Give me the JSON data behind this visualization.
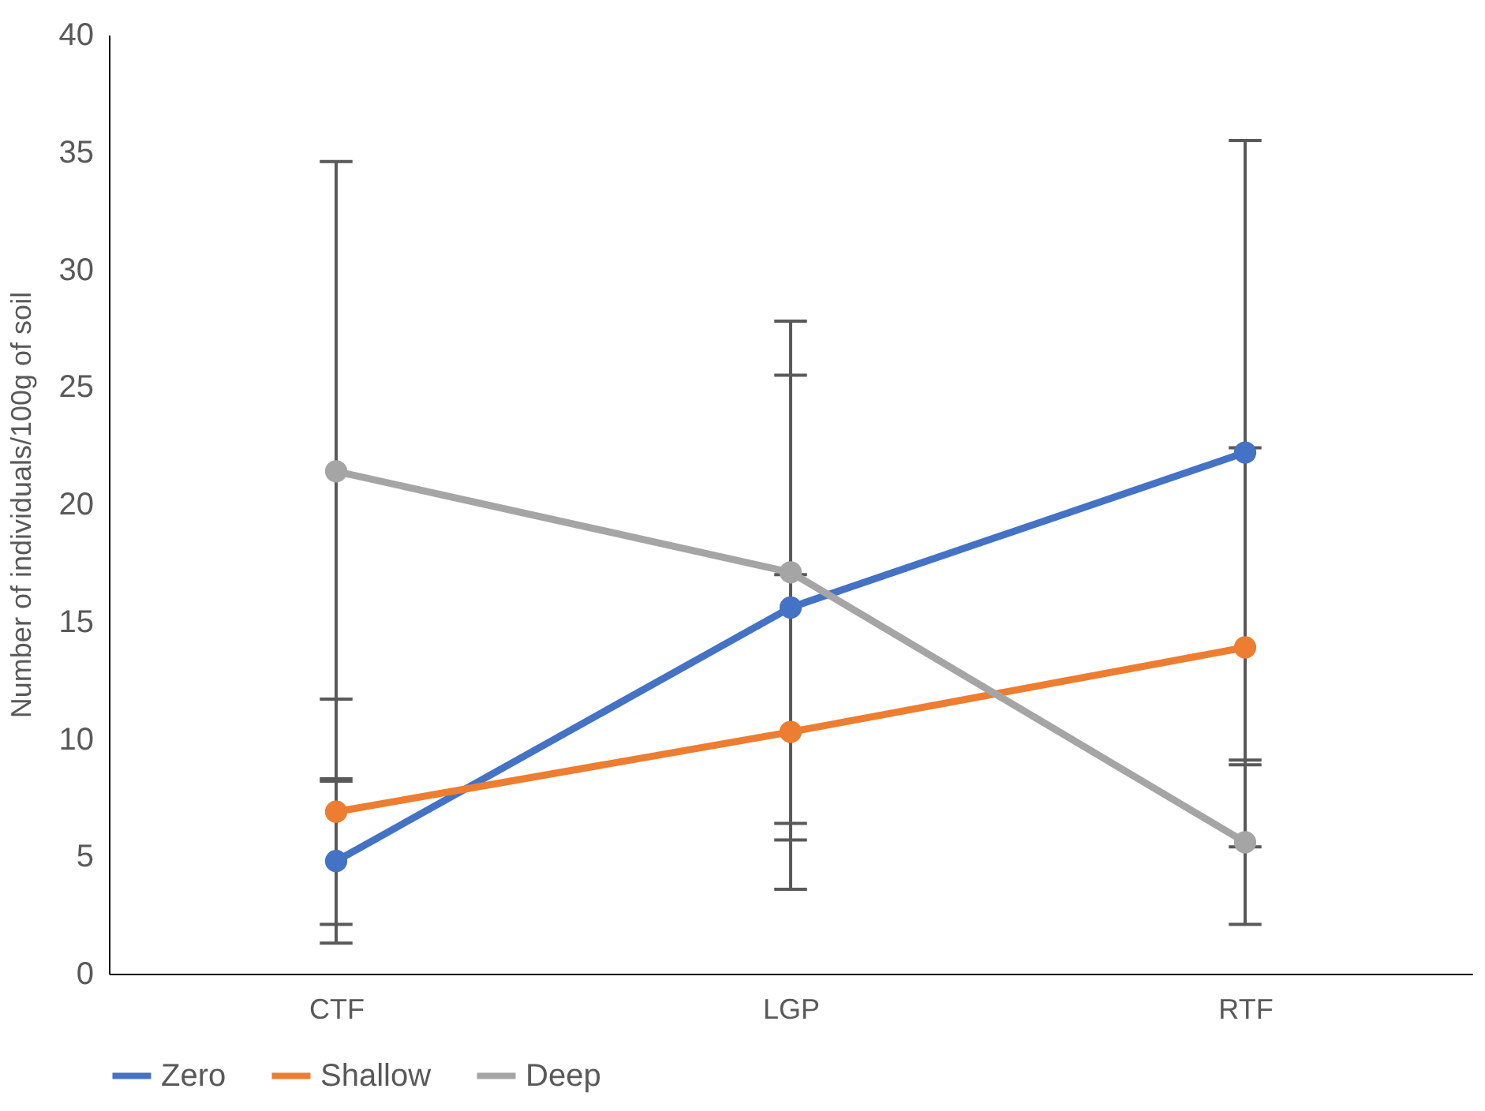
{
  "chart_data": {
    "type": "line",
    "ylabel": "Number of individuals/100g of soil",
    "categories": [
      "CTF",
      "LGP",
      "RTF"
    ],
    "series": [
      {
        "name": "Zero",
        "color": "#4472c4",
        "values": [
          4.8,
          15.6,
          22.2
        ],
        "errors": [
          3.5,
          9.9,
          13.3
        ]
      },
      {
        "name": "Shallow",
        "color": "#ed7d31",
        "values": [
          6.9,
          10.3,
          13.9
        ],
        "errors": [
          4.8,
          6.7,
          8.5
        ]
      },
      {
        "name": "Deep",
        "color": "#a5a5a5",
        "values": [
          21.4,
          17.1,
          5.6
        ],
        "errors": [
          13.2,
          10.7,
          3.5
        ]
      }
    ],
    "ylim": [
      0,
      40
    ],
    "yticks": [
      0,
      5,
      10,
      15,
      20,
      25,
      30,
      35,
      40
    ],
    "grid": false,
    "legend": "bottom",
    "marker": "circle",
    "line_style": "solid"
  }
}
